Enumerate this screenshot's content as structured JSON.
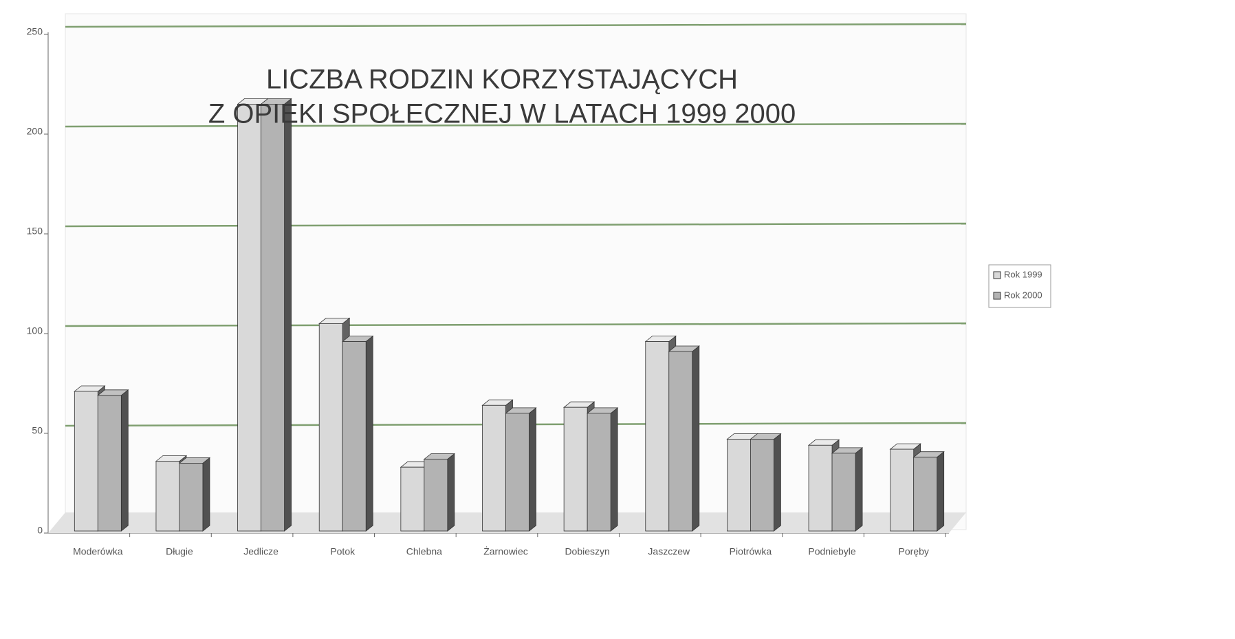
{
  "chart_data": {
    "type": "bar3d",
    "title": [
      "LICZBA RODZIN KORZYSTAJĄCYCH",
      "Z OPIEKI SPOŁECZNEJ W LATACH 1999 2000"
    ],
    "categories": [
      "Moderówka",
      "Długie",
      "Jedlicze",
      "Potok",
      "Chlebna",
      "Żarnowiec",
      "Dobieszyn",
      "Jaszczew",
      "Piotrówka",
      "Podniebyle",
      "Poręby"
    ],
    "series": [
      {
        "name": "Rok 1999",
        "color": "#d9d9d9",
        "values": [
          70,
          35,
          214,
          104,
          32,
          63,
          62,
          95,
          46,
          43,
          41
        ]
      },
      {
        "name": "Rok 2000",
        "color": "#b3b3b3",
        "values": [
          68,
          34,
          214,
          95,
          36,
          59,
          59,
          90,
          46,
          39,
          37
        ]
      }
    ],
    "ylim": [
      0,
      250
    ],
    "yticks": [
      0,
      50,
      100,
      150,
      200,
      250
    ],
    "grid": true,
    "grid_color": "#7f9f70",
    "legend": "right"
  }
}
